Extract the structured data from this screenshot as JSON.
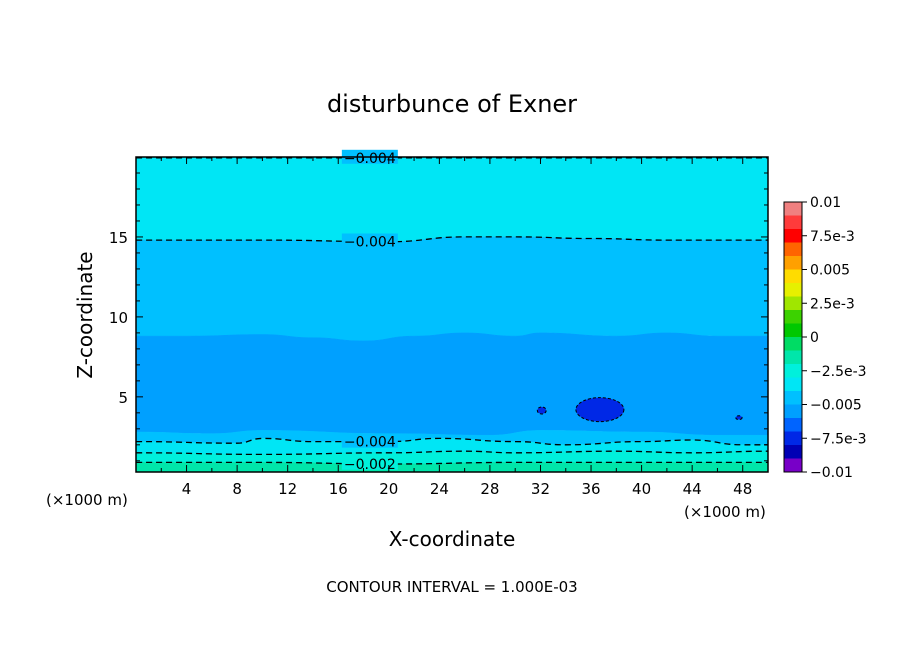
{
  "chart_data": {
    "type": "contour",
    "title": "disturbunce of Exner",
    "xlabel": "X-coordinate",
    "ylabel": "Z-coordinate",
    "x_unit_left": "(×1000 m)",
    "x_unit_right": "(×1000 m)",
    "footer": "CONTOUR INTERVAL = 1.000E-03",
    "xlim": [
      0,
      50
    ],
    "ylim": [
      0.3,
      20
    ],
    "xticks": [
      4,
      8,
      12,
      16,
      20,
      24,
      28,
      32,
      36,
      40,
      44,
      48
    ],
    "xtick_labels": [
      "4",
      "8",
      "12",
      "16",
      "20",
      "24",
      "28",
      "32",
      "36",
      "40",
      "44",
      "48"
    ],
    "yticks": [
      5,
      10,
      15
    ],
    "ytick_labels": [
      "5",
      "10",
      "15"
    ],
    "colorbar": {
      "range": [
        -0.01,
        0.01
      ],
      "labels": [
        {
          "value": 0.01,
          "text": "0.01"
        },
        {
          "value": 0.0075,
          "text": "7.5e-3"
        },
        {
          "value": 0.005,
          "text": "0.005"
        },
        {
          "value": 0.0025,
          "text": "2.5e-3"
        },
        {
          "value": 0,
          "text": "0"
        },
        {
          "value": -0.0025,
          "text": "−2.5e-3"
        },
        {
          "value": -0.005,
          "text": "−0.005"
        },
        {
          "value": -0.0075,
          "text": "−7.5e-3"
        },
        {
          "value": -0.01,
          "text": "−0.01"
        }
      ],
      "bands": [
        {
          "from": 0.009,
          "to": 0.01,
          "color": "#f08080"
        },
        {
          "from": 0.008,
          "to": 0.009,
          "color": "#ff3b3b"
        },
        {
          "from": 0.007,
          "to": 0.008,
          "color": "#ff0000"
        },
        {
          "from": 0.006,
          "to": 0.007,
          "color": "#ff6400"
        },
        {
          "from": 0.005,
          "to": 0.006,
          "color": "#ffa000"
        },
        {
          "from": 0.004,
          "to": 0.005,
          "color": "#ffdc00"
        },
        {
          "from": 0.003,
          "to": 0.004,
          "color": "#e6f000"
        },
        {
          "from": 0.002,
          "to": 0.003,
          "color": "#a0e600"
        },
        {
          "from": 0.001,
          "to": 0.002,
          "color": "#3cd200"
        },
        {
          "from": 0.0,
          "to": 0.001,
          "color": "#00c800"
        },
        {
          "from": -0.001,
          "to": 0.0,
          "color": "#00dc64"
        },
        {
          "from": -0.002,
          "to": -0.001,
          "color": "#00e6aa"
        },
        {
          "from": -0.003,
          "to": -0.002,
          "color": "#00f0dc"
        },
        {
          "from": -0.004,
          "to": -0.003,
          "color": "#00e6f5"
        },
        {
          "from": -0.005,
          "to": -0.004,
          "color": "#00c0ff"
        },
        {
          "from": -0.006,
          "to": -0.005,
          "color": "#00a0ff"
        },
        {
          "from": -0.007,
          "to": -0.006,
          "color": "#0064ff"
        },
        {
          "from": -0.008,
          "to": -0.007,
          "color": "#0028e6"
        },
        {
          "from": -0.009,
          "to": -0.008,
          "color": "#0000b4"
        },
        {
          "from": -0.01,
          "to": -0.009,
          "color": "#7800c8"
        }
      ]
    },
    "regions": [
      {
        "value_band": [
          -0.004,
          -0.003
        ],
        "color": "#00e6f5",
        "upper_z": [
          [
            0,
            20
          ],
          [
            50,
            20
          ]
        ],
        "lower_z": [
          [
            0,
            14.8
          ],
          [
            10,
            14.8
          ],
          [
            20,
            14.7
          ],
          [
            26,
            15.0
          ],
          [
            30,
            15.0
          ],
          [
            36,
            14.9
          ],
          [
            42,
            14.8
          ],
          [
            50,
            14.8
          ]
        ]
      },
      {
        "value_band": [
          -0.005,
          -0.004
        ],
        "color": "#00c0ff",
        "upper_z": [
          [
            0,
            14.8
          ],
          [
            10,
            14.8
          ],
          [
            20,
            14.7
          ],
          [
            26,
            15.0
          ],
          [
            30,
            15.0
          ],
          [
            36,
            14.9
          ],
          [
            42,
            14.8
          ],
          [
            50,
            14.8
          ]
        ],
        "lower_z": [
          [
            0,
            8.8
          ],
          [
            4,
            8.8
          ],
          [
            10,
            8.9
          ],
          [
            14,
            8.7
          ],
          [
            18,
            8.5
          ],
          [
            22,
            8.8
          ],
          [
            26,
            9.0
          ],
          [
            30,
            8.8
          ],
          [
            32,
            9.0
          ],
          [
            38,
            8.8
          ],
          [
            42,
            9.0
          ],
          [
            46,
            8.8
          ],
          [
            50,
            8.8
          ]
        ]
      },
      {
        "value_band": [
          -0.006,
          -0.005
        ],
        "color": "#00a0ff",
        "upper_z": [
          [
            0,
            8.8
          ],
          [
            4,
            8.8
          ],
          [
            10,
            8.9
          ],
          [
            14,
            8.7
          ],
          [
            18,
            8.5
          ],
          [
            22,
            8.8
          ],
          [
            26,
            9.0
          ],
          [
            30,
            8.8
          ],
          [
            32,
            9.0
          ],
          [
            38,
            8.8
          ],
          [
            42,
            9.0
          ],
          [
            46,
            8.8
          ],
          [
            50,
            8.8
          ]
        ],
        "lower_z": [
          [
            0,
            2.8
          ],
          [
            6,
            2.7
          ],
          [
            10,
            2.9
          ],
          [
            20,
            2.7
          ],
          [
            28,
            2.6
          ],
          [
            32,
            2.9
          ],
          [
            40,
            2.8
          ],
          [
            46,
            2.6
          ],
          [
            50,
            2.6
          ]
        ]
      },
      {
        "value_band": [
          -0.005,
          -0.004
        ],
        "color": "#00c0ff",
        "upper_z": [
          [
            0,
            2.8
          ],
          [
            6,
            2.7
          ],
          [
            10,
            2.9
          ],
          [
            20,
            2.7
          ],
          [
            28,
            2.6
          ],
          [
            32,
            2.9
          ],
          [
            40,
            2.8
          ],
          [
            46,
            2.6
          ],
          [
            50,
            2.6
          ]
        ],
        "lower_z": [
          [
            0,
            2.2
          ],
          [
            8,
            2.1
          ],
          [
            10,
            2.4
          ],
          [
            14,
            2.2
          ],
          [
            20,
            2.2
          ],
          [
            24,
            2.4
          ],
          [
            30,
            2.2
          ],
          [
            34,
            2.0
          ],
          [
            40,
            2.2
          ],
          [
            44,
            2.3
          ],
          [
            48,
            2.0
          ],
          [
            50,
            2.0
          ]
        ]
      },
      {
        "value_band": [
          -0.004,
          -0.003
        ],
        "color": "#00e6f5",
        "upper_z": [
          [
            0,
            2.2
          ],
          [
            8,
            2.1
          ],
          [
            10,
            2.4
          ],
          [
            14,
            2.2
          ],
          [
            20,
            2.2
          ],
          [
            24,
            2.4
          ],
          [
            30,
            2.2
          ],
          [
            34,
            2.0
          ],
          [
            40,
            2.2
          ],
          [
            44,
            2.3
          ],
          [
            48,
            2.0
          ],
          [
            50,
            2.0
          ]
        ],
        "lower_z": [
          [
            0,
            1.5
          ],
          [
            10,
            1.4
          ],
          [
            20,
            1.5
          ],
          [
            26,
            1.6
          ],
          [
            30,
            1.5
          ],
          [
            38,
            1.6
          ],
          [
            44,
            1.5
          ],
          [
            50,
            1.6
          ]
        ]
      },
      {
        "value_band": [
          -0.003,
          -0.002
        ],
        "color": "#00f0dc",
        "upper_z": [
          [
            0,
            1.5
          ],
          [
            10,
            1.4
          ],
          [
            20,
            1.5
          ],
          [
            26,
            1.6
          ],
          [
            30,
            1.5
          ],
          [
            38,
            1.6
          ],
          [
            44,
            1.5
          ],
          [
            50,
            1.6
          ]
        ],
        "lower_z": [
          [
            0,
            0.9
          ],
          [
            10,
            0.9
          ],
          [
            20,
            0.8
          ],
          [
            30,
            0.9
          ],
          [
            40,
            0.9
          ],
          [
            50,
            0.9
          ]
        ]
      },
      {
        "value_band": [
          -0.002,
          -0.001
        ],
        "color": "#00e6aa",
        "upper_z": [
          [
            0,
            0.9
          ],
          [
            10,
            0.9
          ],
          [
            20,
            0.8
          ],
          [
            30,
            0.9
          ],
          [
            40,
            0.9
          ],
          [
            50,
            0.9
          ]
        ],
        "lower_z": [
          [
            0,
            0.3
          ],
          [
            50,
            0.3
          ]
        ]
      }
    ],
    "contours": [
      {
        "level": -0.004,
        "label": "−0.004",
        "label_x": 18.5,
        "points": [
          [
            0,
            19.95
          ],
          [
            50,
            19.95
          ]
        ]
      },
      {
        "level": -0.004,
        "label": "−0.004",
        "label_x": 18.5,
        "points": [
          [
            0,
            14.8
          ],
          [
            10,
            14.8
          ],
          [
            20,
            14.7
          ],
          [
            26,
            15.0
          ],
          [
            30,
            15.0
          ],
          [
            36,
            14.9
          ],
          [
            42,
            14.8
          ],
          [
            50,
            14.8
          ]
        ]
      },
      {
        "level": -0.004,
        "label": "−0.004",
        "label_x": 18.5,
        "points": [
          [
            0,
            2.2
          ],
          [
            8,
            2.1
          ],
          [
            10,
            2.4
          ],
          [
            14,
            2.2
          ],
          [
            20,
            2.2
          ],
          [
            24,
            2.4
          ],
          [
            30,
            2.2
          ],
          [
            34,
            2.0
          ],
          [
            40,
            2.2
          ],
          [
            44,
            2.3
          ],
          [
            48,
            2.0
          ],
          [
            50,
            2.0
          ]
        ]
      },
      {
        "level": -0.003,
        "label": "",
        "label_x": 0,
        "points": [
          [
            0,
            1.5
          ],
          [
            10,
            1.4
          ],
          [
            20,
            1.5
          ],
          [
            26,
            1.6
          ],
          [
            30,
            1.5
          ],
          [
            38,
            1.6
          ],
          [
            44,
            1.5
          ],
          [
            50,
            1.6
          ]
        ]
      },
      {
        "level": -0.002,
        "label": "−0.002",
        "label_x": 18.5,
        "points": [
          [
            0,
            0.9
          ],
          [
            10,
            0.9
          ],
          [
            20,
            0.8
          ],
          [
            30,
            0.9
          ],
          [
            40,
            0.9
          ],
          [
            50,
            0.9
          ]
        ]
      }
    ],
    "closed_contours": [
      {
        "level": -0.007,
        "cx": 36.7,
        "cz": 4.2,
        "rx": 1.9,
        "rz": 0.75
      },
      {
        "level": -0.007,
        "cx": 32.1,
        "cz": 4.15,
        "rx": 0.35,
        "rz": 0.22
      },
      {
        "level": -0.007,
        "cx": 47.7,
        "cz": 3.7,
        "rx": 0.25,
        "rz": 0.12
      }
    ]
  }
}
